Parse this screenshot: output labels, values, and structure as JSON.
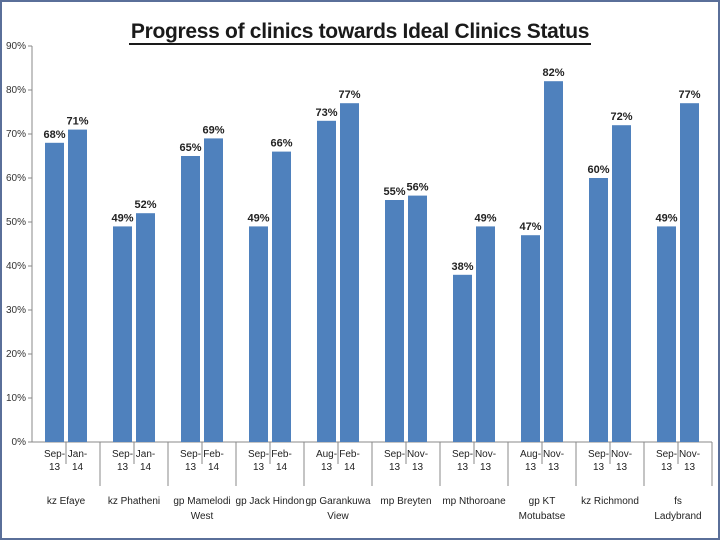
{
  "chart_data": {
    "type": "bar",
    "title": "Progress of clinics towards Ideal Clinics Status",
    "ylim": [
      0,
      90
    ],
    "yticks": [
      "0%",
      "10%",
      "20%",
      "30%",
      "40%",
      "50%",
      "60%",
      "70%",
      "80%",
      "90%"
    ],
    "grid": false,
    "color": "#4f81bd",
    "groups": [
      {
        "name": [
          "kz Efaye"
        ],
        "bars": [
          {
            "x": [
              "Sep-",
              "13"
            ],
            "value": 68,
            "label": "68%"
          },
          {
            "x": [
              "Jan-",
              "14"
            ],
            "value": 71,
            "label": "71%"
          }
        ]
      },
      {
        "name": [
          "kz Phatheni"
        ],
        "bars": [
          {
            "x": [
              "Sep-",
              "13"
            ],
            "value": 49,
            "label": "49%"
          },
          {
            "x": [
              "Jan-",
              "14"
            ],
            "value": 52,
            "label": "52%"
          }
        ]
      },
      {
        "name": [
          "gp Mamelodi",
          "West"
        ],
        "bars": [
          {
            "x": [
              "Sep-",
              "13"
            ],
            "value": 65,
            "label": "65%"
          },
          {
            "x": [
              "Feb-",
              "14"
            ],
            "value": 69,
            "label": "69%"
          }
        ]
      },
      {
        "name": [
          "gp Jack Hindon"
        ],
        "bars": [
          {
            "x": [
              "Sep-",
              "13"
            ],
            "value": 49,
            "label": "49%"
          },
          {
            "x": [
              "Feb-",
              "14"
            ],
            "value": 66,
            "label": "66%"
          }
        ]
      },
      {
        "name": [
          "gp Garankuwa",
          "View"
        ],
        "bars": [
          {
            "x": [
              "Aug-",
              "13"
            ],
            "value": 73,
            "label": "73%"
          },
          {
            "x": [
              "Feb-",
              "14"
            ],
            "value": 77,
            "label": "77%"
          }
        ]
      },
      {
        "name": [
          "mp Breyten"
        ],
        "bars": [
          {
            "x": [
              "Sep-",
              "13"
            ],
            "value": 55,
            "label": "55%"
          },
          {
            "x": [
              "Nov-",
              "13"
            ],
            "value": 56,
            "label": "56%"
          }
        ]
      },
      {
        "name": [
          "mp Nthoroane"
        ],
        "bars": [
          {
            "x": [
              "Sep-",
              "13"
            ],
            "value": 38,
            "label": "38%"
          },
          {
            "x": [
              "Nov-",
              "13"
            ],
            "value": 49,
            "label": "49%"
          }
        ]
      },
      {
        "name": [
          "gp KT",
          "Motubatse"
        ],
        "bars": [
          {
            "x": [
              "Aug-",
              "13"
            ],
            "value": 47,
            "label": "47%"
          },
          {
            "x": [
              "Nov-",
              "13"
            ],
            "value": 82,
            "label": "82%"
          }
        ]
      },
      {
        "name": [
          "kz Richmond"
        ],
        "bars": [
          {
            "x": [
              "Sep-",
              "13"
            ],
            "value": 60,
            "label": "60%"
          },
          {
            "x": [
              "Nov-",
              "13"
            ],
            "value": 72,
            "label": "72%"
          }
        ]
      },
      {
        "name": [
          "fs",
          "Ladybrand"
        ],
        "bars": [
          {
            "x": [
              "Sep-",
              "13"
            ],
            "value": 49,
            "label": "49%"
          },
          {
            "x": [
              "Nov-",
              "13"
            ],
            "value": 77,
            "label": "77%"
          }
        ]
      }
    ]
  }
}
